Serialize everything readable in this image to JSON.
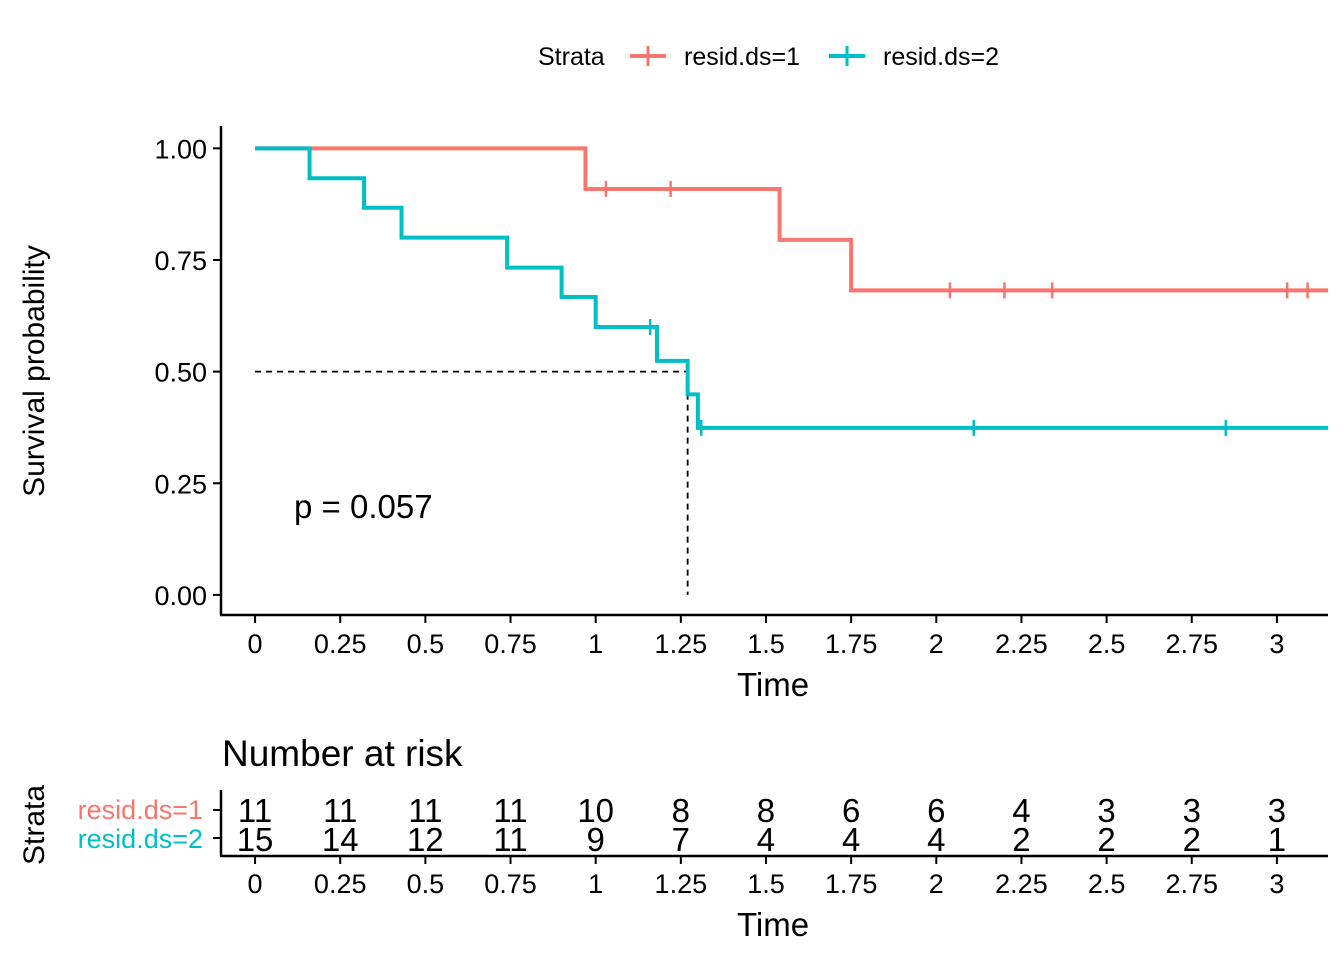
{
  "legend": {
    "title": "Strata",
    "items": [
      {
        "label": "resid.ds=1",
        "color": "#F8766D"
      },
      {
        "label": "resid.ds=2",
        "color": "#00BFC4"
      }
    ]
  },
  "chart_data": {
    "type": "line",
    "step": true,
    "xlabel": "Time",
    "ylabel": "Survival probability",
    "xlim": [
      -0.1,
      3.15
    ],
    "ylim": [
      -0.045,
      1.05
    ],
    "x_ticks": [
      "0",
      "0.25",
      "0.5",
      "0.75",
      "1",
      "1.25",
      "1.5",
      "1.75",
      "2",
      "2.25",
      "2.5",
      "2.75",
      "3"
    ],
    "y_ticks": [
      "0.00",
      "0.25",
      "0.50",
      "0.75",
      "1.00"
    ],
    "grid": false,
    "legend_position": "top",
    "pvalue_text": "p = 0.057",
    "median_line": {
      "y": 0.5,
      "x": 1.27
    },
    "series": [
      {
        "name": "resid.ds=1",
        "color": "#F8766D",
        "steps": [
          [
            0,
            1.0
          ],
          [
            0.97,
            0.909
          ],
          [
            1.54,
            0.795
          ],
          [
            1.75,
            0.682
          ],
          [
            3.15,
            0.682
          ]
        ],
        "censored": [
          [
            1.03,
            0.909
          ],
          [
            1.22,
            0.909
          ],
          [
            2.04,
            0.682
          ],
          [
            2.2,
            0.682
          ],
          [
            2.34,
            0.682
          ],
          [
            3.03,
            0.682
          ],
          [
            3.09,
            0.682
          ]
        ]
      },
      {
        "name": "resid.ds=2",
        "color": "#00BFC4",
        "steps": [
          [
            0,
            1.0
          ],
          [
            0.16,
            0.933
          ],
          [
            0.32,
            0.867
          ],
          [
            0.43,
            0.8
          ],
          [
            0.74,
            0.733
          ],
          [
            0.9,
            0.667
          ],
          [
            1.0,
            0.6
          ],
          [
            1.18,
            0.524
          ],
          [
            1.27,
            0.449
          ],
          [
            1.3,
            0.374
          ],
          [
            3.15,
            0.374
          ]
        ],
        "censored": [
          [
            1.16,
            0.6
          ],
          [
            1.31,
            0.374
          ],
          [
            2.11,
            0.374
          ],
          [
            2.85,
            0.374
          ]
        ]
      }
    ]
  },
  "risk_table": {
    "title": "Number at risk",
    "ylabel": "Strata",
    "xlabel": "Time",
    "x_ticks": [
      "0",
      "0.25",
      "0.5",
      "0.75",
      "1",
      "1.25",
      "1.5",
      "1.75",
      "2",
      "2.25",
      "2.5",
      "2.75",
      "3"
    ],
    "rows": [
      {
        "label": "resid.ds=1",
        "color": "#F8766D",
        "values": [
          "11",
          "11",
          "11",
          "11",
          "10",
          "8",
          "8",
          "6",
          "6",
          "4",
          "3",
          "3",
          "3"
        ]
      },
      {
        "label": "resid.ds=2",
        "color": "#00BFC4",
        "values": [
          "15",
          "14",
          "12",
          "11",
          "9",
          "7",
          "4",
          "4",
          "4",
          "2",
          "2",
          "2",
          "1"
        ]
      }
    ]
  }
}
